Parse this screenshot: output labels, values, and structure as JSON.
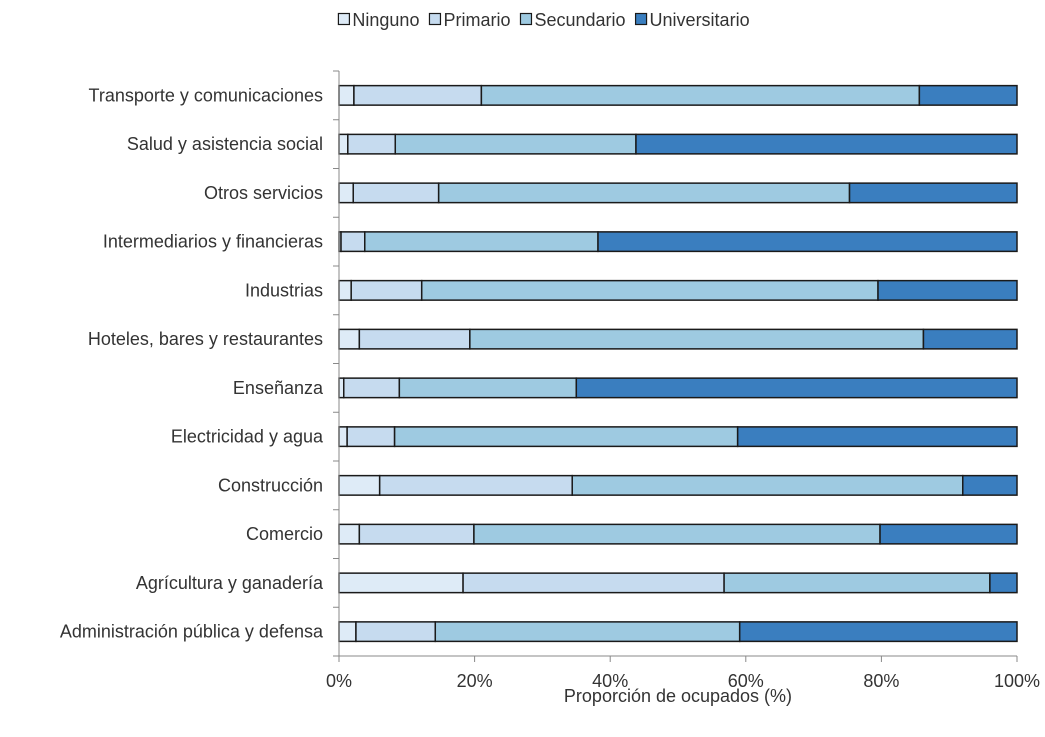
{
  "chart_data": {
    "type": "bar",
    "orientation": "horizontal",
    "stacked": "percent",
    "title": "",
    "xlabel": "Proporción de ocupados (%)",
    "ylabel": "",
    "xlim": [
      0,
      100
    ],
    "x_ticks": [
      "0%",
      "20%",
      "40%",
      "60%",
      "80%",
      "100%"
    ],
    "legend_position": "top",
    "grid": false,
    "categories": [
      "Transporte y comunicaciones",
      "Salud y asistencia social",
      "Otros servicios",
      "Intermediarios y financieras",
      "Industrias",
      "Hoteles, bares y restaurantes",
      "Enseñanza",
      "Electricidad y agua",
      "Construcción",
      "Comercio",
      "Agrícultura y ganadería",
      "Administración pública y defensa"
    ],
    "series": [
      {
        "name": "Ninguno",
        "color": "#deebf7",
        "values": [
          2.2,
          1.3,
          2.1,
          0.3,
          1.8,
          3.0,
          0.7,
          1.2,
          6.0,
          3.0,
          18.3,
          2.5
        ]
      },
      {
        "name": "Primario",
        "color": "#c6dbef",
        "values": [
          18.8,
          7.0,
          12.6,
          3.5,
          10.4,
          16.3,
          8.2,
          7.0,
          28.4,
          16.9,
          38.5,
          11.7
        ]
      },
      {
        "name": "Secundario",
        "color": "#9ecae1",
        "values": [
          64.6,
          35.5,
          60.6,
          34.4,
          67.3,
          66.9,
          26.1,
          50.6,
          57.6,
          59.9,
          39.2,
          44.9
        ]
      },
      {
        "name": "Universitario",
        "color": "#3a7ebf",
        "values": [
          14.4,
          56.2,
          24.7,
          61.8,
          20.5,
          13.8,
          65.0,
          41.2,
          8.0,
          20.2,
          4.0,
          40.9
        ]
      }
    ]
  }
}
